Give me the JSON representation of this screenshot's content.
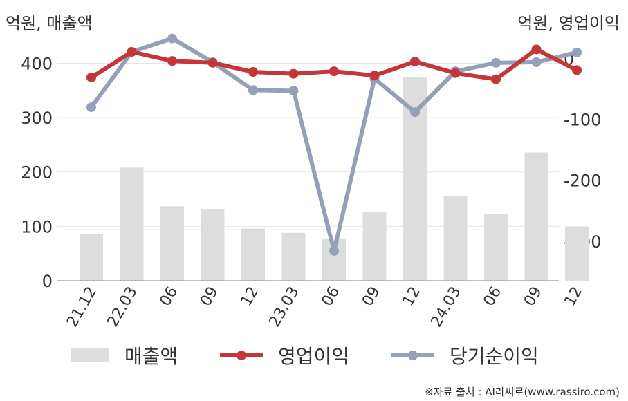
{
  "header": {
    "left_unit": "억원, 매출액",
    "right_unit": "억원, 영업이익"
  },
  "legend": {
    "revenue": "매출액",
    "operating": "영업이익",
    "net": "당기순이익"
  },
  "source": "※자료 출처 : AI라씨로(www.rassiro.com)",
  "chart_data": {
    "type": "bar+line",
    "categories": [
      "21.12",
      "22.03",
      "06",
      "09",
      "12",
      "23.03",
      "06",
      "09",
      "12",
      "24.03",
      "06",
      "09",
      "12"
    ],
    "left_axis": {
      "ticks": [
        0,
        100,
        200,
        300,
        400
      ],
      "range": [
        0,
        440
      ]
    },
    "right_axis": {
      "ticks": [
        0,
        -100,
        -200,
        -300
      ],
      "range": [
        -365,
        28
      ]
    },
    "series": [
      {
        "name": "매출액",
        "type": "bar",
        "axis": "left",
        "color": "#dddddd",
        "values": [
          86,
          208,
          137,
          131,
          96,
          88,
          78,
          127,
          375,
          156,
          122,
          236,
          100
        ]
      },
      {
        "name": "영업이익",
        "type": "line",
        "axis": "right",
        "color": "#c4363a",
        "values": [
          -31,
          11,
          -4,
          -7,
          -22,
          -25,
          -21,
          -28,
          -5,
          -24,
          -34,
          15,
          -19
        ]
      },
      {
        "name": "당기순이익",
        "type": "line",
        "axis": "right",
        "color": "#94a0b8",
        "values": [
          -80,
          11,
          33,
          -6,
          -52,
          -53,
          -316,
          -33,
          -88,
          -21,
          -7,
          -6,
          10
        ]
      }
    ],
    "grid": true
  }
}
